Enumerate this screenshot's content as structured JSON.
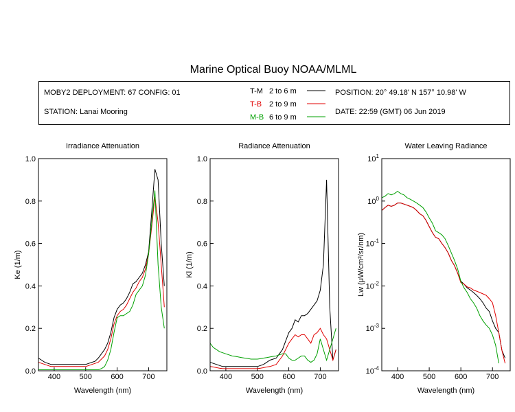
{
  "header": {
    "title": "Marine Optical Buoy NOAA/MLML",
    "deployment": "MOBY2 DEPLOYMENT: 67 CONFIG: 01",
    "station": "STATION: Lanai Mooring",
    "position": "POSITION: 20° 49.18' N   157° 10.98' W",
    "date": "DATE: 22:59 (GMT) 06 Jun 2019",
    "legend_ranges": [
      "2 to 6  m",
      "2 to 9  m",
      "6 to 9  m"
    ]
  },
  "chart_data": [
    {
      "type": "line",
      "title": "Irradiance Attenuation",
      "x_label": "Wavelength (nm)",
      "y_label": "Ke  (1/m)",
      "x": [
        350,
        360,
        370,
        380,
        390,
        400,
        410,
        420,
        430,
        440,
        450,
        460,
        470,
        480,
        490,
        500,
        510,
        520,
        530,
        540,
        550,
        560,
        570,
        580,
        590,
        600,
        610,
        620,
        630,
        640,
        650,
        660,
        670,
        680,
        690,
        700,
        710,
        720,
        730,
        740,
        750
      ],
      "xlim": [
        350,
        758
      ],
      "xticks": [
        400,
        500,
        600,
        700
      ],
      "ylim": [
        0,
        1
      ],
      "yticks": [
        {
          "value": 0,
          "label": "0.0"
        },
        0.2,
        0.4,
        0.6,
        0.8,
        {
          "value": 1,
          "label": "1.0"
        }
      ],
      "series": [
        {
          "name": "T-M",
          "color": "#000000",
          "values": [
            0.06,
            0.05,
            0.04,
            0.035,
            0.03,
            0.03,
            0.03,
            0.03,
            0.03,
            0.03,
            0.03,
            0.03,
            0.03,
            0.03,
            0.03,
            0.03,
            0.035,
            0.04,
            0.045,
            0.06,
            0.08,
            0.1,
            0.13,
            0.18,
            0.25,
            0.29,
            0.31,
            0.32,
            0.34,
            0.37,
            0.41,
            0.42,
            0.44,
            0.46,
            0.5,
            0.56,
            0.75,
            0.95,
            0.9,
            0.6,
            0.4
          ]
        },
        {
          "name": "T-B",
          "color": "#e00000",
          "values": [
            0.04,
            0.035,
            0.03,
            0.025,
            0.02,
            0.02,
            0.02,
            0.02,
            0.02,
            0.02,
            0.02,
            0.02,
            0.02,
            0.02,
            0.02,
            0.02,
            0.025,
            0.03,
            0.035,
            0.04,
            0.055,
            0.07,
            0.1,
            0.15,
            0.22,
            0.26,
            0.28,
            0.29,
            0.31,
            0.34,
            0.37,
            0.39,
            0.42,
            0.44,
            0.48,
            0.55,
            0.68,
            0.82,
            0.7,
            0.5,
            0.3
          ]
        },
        {
          "name": "M-B",
          "color": "#00a000",
          "values": [
            0.005,
            0.005,
            0.005,
            0.005,
            0.005,
            0.005,
            0.005,
            0.005,
            0.005,
            0.005,
            0.005,
            0.005,
            0.005,
            0.005,
            0.005,
            0.005,
            0.005,
            0.005,
            0.005,
            0.005,
            0.01,
            0.02,
            0.05,
            0.1,
            0.18,
            0.25,
            0.26,
            0.26,
            0.27,
            0.28,
            0.31,
            0.36,
            0.38,
            0.4,
            0.45,
            0.55,
            0.7,
            0.85,
            0.5,
            0.3,
            0.2
          ]
        }
      ]
    },
    {
      "type": "line",
      "title": "Radiance Attenuation",
      "x_label": "Wavelength (nm)",
      "y_label": "Kl  (1/m)",
      "x": [
        350,
        360,
        370,
        380,
        390,
        400,
        410,
        420,
        430,
        440,
        450,
        460,
        470,
        480,
        490,
        500,
        510,
        520,
        530,
        540,
        550,
        560,
        570,
        580,
        590,
        600,
        610,
        620,
        630,
        640,
        650,
        660,
        670,
        680,
        690,
        700,
        710,
        720,
        730,
        740,
        750
      ],
      "xlim": [
        350,
        758
      ],
      "xticks": [
        400,
        500,
        600,
        700
      ],
      "ylim": [
        0,
        1
      ],
      "yticks": [
        {
          "value": 0,
          "label": "0.0"
        },
        0.2,
        0.4,
        0.6,
        0.8,
        {
          "value": 1,
          "label": "1.0"
        }
      ],
      "series": [
        {
          "name": "T-M",
          "color": "#000000",
          "values": [
            0.04,
            0.035,
            0.03,
            0.025,
            0.02,
            0.02,
            0.02,
            0.02,
            0.02,
            0.02,
            0.02,
            0.02,
            0.02,
            0.02,
            0.02,
            0.02,
            0.025,
            0.03,
            0.04,
            0.05,
            0.055,
            0.06,
            0.08,
            0.1,
            0.14,
            0.18,
            0.2,
            0.24,
            0.23,
            0.26,
            0.26,
            0.27,
            0.29,
            0.31,
            0.33,
            0.38,
            0.5,
            0.9,
            0.3,
            0.05,
            0.1
          ]
        },
        {
          "name": "T-B",
          "color": "#e00000",
          "values": [
            0.02,
            0.018,
            0.015,
            0.012,
            0.01,
            0.01,
            0.01,
            0.01,
            0.01,
            0.01,
            0.01,
            0.01,
            0.01,
            0.01,
            0.01,
            0.01,
            0.012,
            0.015,
            0.018,
            0.02,
            0.025,
            0.03,
            0.05,
            0.07,
            0.1,
            0.13,
            0.15,
            0.17,
            0.16,
            0.17,
            0.17,
            0.15,
            0.13,
            0.17,
            0.18,
            0.2,
            0.17,
            0.15,
            0.1,
            0.05,
            0.1
          ]
        },
        {
          "name": "M-B",
          "color": "#00a000",
          "values": [
            0.13,
            0.11,
            0.1,
            0.09,
            0.085,
            0.08,
            0.075,
            0.07,
            0.068,
            0.065,
            0.062,
            0.06,
            0.058,
            0.055,
            0.055,
            0.055,
            0.057,
            0.06,
            0.062,
            0.065,
            0.068,
            0.07,
            0.075,
            0.08,
            0.08,
            0.06,
            0.05,
            0.05,
            0.06,
            0.07,
            0.07,
            0.05,
            0.04,
            0.05,
            0.08,
            0.15,
            0.1,
            0.05,
            0.1,
            0.15,
            0.2
          ]
        }
      ]
    },
    {
      "type": "line",
      "title": "Water Leaving Radiance",
      "x_label": "Wavelength (nm)",
      "y_label": "Lw  (μW/cm²/sr/nm)",
      "x": [
        350,
        360,
        370,
        380,
        390,
        400,
        410,
        420,
        430,
        440,
        450,
        460,
        470,
        480,
        490,
        500,
        510,
        520,
        530,
        540,
        550,
        560,
        570,
        580,
        590,
        600,
        610,
        620,
        630,
        640,
        650,
        660,
        670,
        680,
        690,
        700,
        710,
        720,
        730,
        740,
        750
      ],
      "xlim": [
        350,
        756
      ],
      "xticks": [
        400,
        500,
        600,
        700
      ],
      "yscale": "log",
      "ylim": [
        0.0001,
        10
      ],
      "yticks": [
        {
          "value": 0.0001,
          "label": "10",
          "exponent": "-4"
        },
        {
          "value": 0.001,
          "label": "10",
          "exponent": "-3"
        },
        {
          "value": 0.01,
          "label": "10",
          "exponent": "-2"
        },
        {
          "value": 0.1,
          "label": "10",
          "exponent": "-1"
        },
        {
          "value": 1,
          "label": "10",
          "exponent": "0"
        },
        {
          "value": 10,
          "label": "10",
          "exponent": "1"
        }
      ],
      "series": [
        {
          "name": "T-M",
          "color": "#000000",
          "values": [
            0.6,
            0.7,
            0.8,
            0.75,
            0.8,
            0.9,
            0.9,
            0.85,
            0.8,
            0.75,
            0.7,
            0.6,
            0.5,
            0.45,
            0.35,
            0.25,
            0.18,
            0.14,
            0.13,
            0.1,
            0.08,
            0.06,
            0.04,
            0.03,
            0.02,
            0.013,
            0.011,
            0.009,
            0.008,
            0.007,
            0.006,
            0.005,
            0.004,
            0.003,
            0.0025,
            0.0015,
            0.001,
            0.0008,
            0.0003,
            0.0002,
            null
          ]
        },
        {
          "name": "T-B",
          "color": "#e00000",
          "values": [
            0.6,
            0.7,
            0.8,
            0.75,
            0.8,
            0.9,
            0.9,
            0.85,
            0.8,
            0.75,
            0.7,
            0.6,
            0.5,
            0.45,
            0.35,
            0.25,
            0.18,
            0.14,
            0.13,
            0.1,
            0.08,
            0.06,
            0.04,
            0.03,
            0.02,
            0.012,
            0.011,
            0.0095,
            0.009,
            0.008,
            0.0075,
            0.007,
            0.0065,
            0.006,
            0.005,
            0.004,
            0.002,
            0.0008,
            0.0003,
            0.00015,
            null
          ]
        },
        {
          "name": "M-B",
          "color": "#00a000",
          "values": [
            1.2,
            1.3,
            1.5,
            1.4,
            1.5,
            1.7,
            1.5,
            1.4,
            1.2,
            1.1,
            1.0,
            0.9,
            0.8,
            0.7,
            0.55,
            0.4,
            0.3,
            0.2,
            0.18,
            0.16,
            0.13,
            0.09,
            0.06,
            0.04,
            0.025,
            0.013,
            0.009,
            0.007,
            0.005,
            0.004,
            0.003,
            0.002,
            0.0015,
            0.0012,
            0.001,
            0.0007,
            0.0004,
            0.00015,
            null,
            null,
            null
          ]
        }
      ]
    }
  ]
}
